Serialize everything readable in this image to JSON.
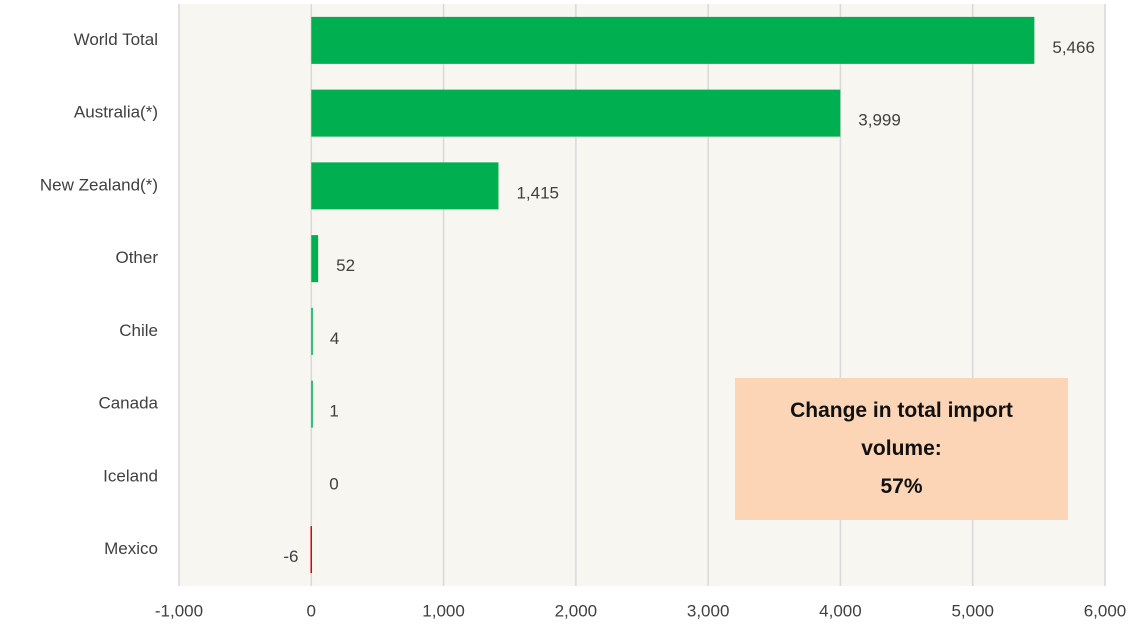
{
  "chart_data": {
    "type": "hbar",
    "categories": [
      "World Total",
      "Australia(*)",
      "New Zealand(*)",
      "Other",
      "Chile",
      "Canada",
      "Iceland",
      "Mexico"
    ],
    "values": [
      5466,
      3999,
      1415,
      52,
      4,
      1,
      0,
      -6
    ],
    "value_labels": [
      "5,466",
      "3,999",
      "1,415",
      "52",
      "4",
      "1",
      "0",
      "-6"
    ],
    "color": "#00b050",
    "negative_color": "#e00000",
    "xlim": [
      -1000,
      6000
    ],
    "xticks": [
      {
        "value": -1000,
        "label": "-1,000"
      },
      0,
      {
        "value": 1000,
        "label": "1,000"
      },
      {
        "value": 2000,
        "label": "2,000"
      },
      {
        "value": 3000,
        "label": "3,000"
      },
      {
        "value": 4000,
        "label": "4,000"
      },
      {
        "value": 5000,
        "label": "5,000"
      },
      {
        "value": 6000,
        "label": "6,000"
      }
    ],
    "grid": true,
    "annotations": [
      "Change in total import volume:",
      "57%"
    ]
  }
}
